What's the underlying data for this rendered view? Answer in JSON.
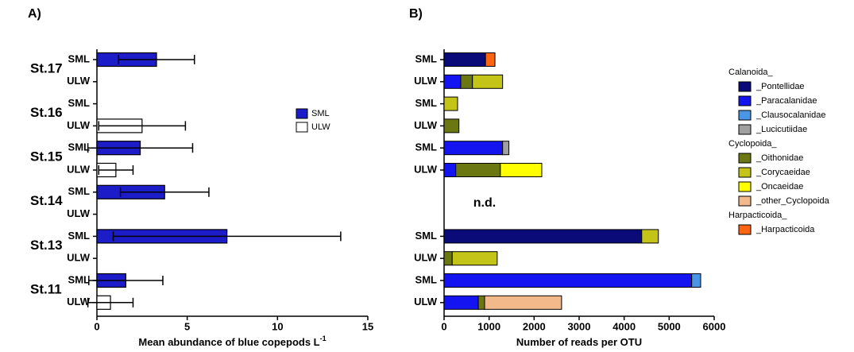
{
  "chart_data": [
    {
      "type": "bar",
      "panel_label": "A)",
      "xlabel": "Mean abundance of blue copepods L",
      "xlabel_sup": "-1",
      "categories": [
        "SML",
        "ULW",
        "SML",
        "ULW",
        "SML",
        "ULW",
        "SML",
        "ULW",
        "SML",
        "ULW",
        "SML",
        "ULW"
      ],
      "groups": [
        "St.17",
        "St.16",
        "St.15",
        "St.14",
        "St.13",
        "St.11"
      ],
      "series": [
        {
          "name": "SML",
          "color": "#1c1cc8",
          "values": [
            3.3,
            null,
            null,
            null,
            2.4,
            null,
            3.75,
            null,
            7.2,
            null,
            1.6,
            null
          ],
          "errors": [
            2.1,
            null,
            null,
            null,
            2.9,
            null,
            2.45,
            null,
            6.3,
            null,
            2.05,
            null
          ]
        },
        {
          "name": "ULW",
          "color": "#ffffff",
          "values": [
            null,
            null,
            null,
            2.5,
            null,
            1.05,
            null,
            null,
            null,
            null,
            null,
            0.75
          ],
          "errors": [
            null,
            null,
            null,
            2.4,
            null,
            0.95,
            null,
            null,
            null,
            null,
            null,
            1.25
          ]
        }
      ],
      "xlim": [
        0,
        15
      ],
      "xticks": [
        0,
        5,
        10,
        15
      ]
    },
    {
      "type": "stacked_bar",
      "panel_label": "B)",
      "xlabel": "Number of reads per OTU",
      "annotation": "n.d.",
      "categories": [
        "SML",
        "ULW",
        "SML",
        "ULW",
        "SML",
        "ULW",
        null,
        null,
        "SML",
        "ULW",
        "SML",
        "ULW"
      ],
      "series": [
        {
          "name": "_Pontellidae",
          "group": "Calanoida_",
          "color": "#0a0a78",
          "values": [
            920,
            null,
            null,
            null,
            null,
            null,
            null,
            null,
            4390,
            null,
            null,
            null
          ]
        },
        {
          "name": "_Paracalanidae",
          "group": "Calanoida_",
          "color": "#1414f0",
          "values": [
            null,
            370,
            null,
            null,
            1300,
            260,
            null,
            null,
            null,
            null,
            5500,
            760
          ]
        },
        {
          "name": "_Clausocalanidae",
          "group": "Calanoida_",
          "color": "#4a96e6",
          "values": [
            null,
            null,
            null,
            null,
            null,
            null,
            null,
            null,
            null,
            null,
            200,
            null
          ]
        },
        {
          "name": "_Lucicutiidae",
          "group": "Calanoida_",
          "color": "#a0a0a0",
          "values": [
            null,
            null,
            null,
            null,
            140,
            null,
            null,
            null,
            null,
            null,
            null,
            null
          ]
        },
        {
          "name": "_Oithonidae",
          "group": "Cyclopoida_",
          "color": "#6b7812",
          "values": [
            null,
            260,
            null,
            330,
            null,
            990,
            null,
            null,
            null,
            180,
            null,
            140
          ]
        },
        {
          "name": "_Corycaeidae",
          "group": "Cyclopoida_",
          "color": "#c4c418",
          "values": [
            null,
            670,
            300,
            null,
            null,
            null,
            null,
            null,
            370,
            1000,
            null,
            null
          ]
        },
        {
          "name": "_Oncaeidae",
          "group": "Cyclopoida_",
          "color": "#ffff00",
          "values": [
            null,
            null,
            null,
            null,
            null,
            920,
            null,
            null,
            null,
            null,
            null,
            null
          ]
        },
        {
          "name": "_other_Cyclopoida",
          "group": "Cyclopoida_",
          "color": "#f4b98a",
          "values": [
            null,
            null,
            null,
            null,
            null,
            null,
            null,
            null,
            null,
            null,
            null,
            1710
          ]
        },
        {
          "name": "_Harpacticoida",
          "group": "Harpacticoida_",
          "color": "#ff6410",
          "values": [
            210,
            null,
            null,
            null,
            null,
            null,
            null,
            null,
            null,
            null,
            null,
            null
          ]
        }
      ],
      "xlim": [
        0,
        6000
      ],
      "xticks": [
        0,
        1000,
        2000,
        3000,
        4000,
        5000,
        6000
      ]
    }
  ]
}
